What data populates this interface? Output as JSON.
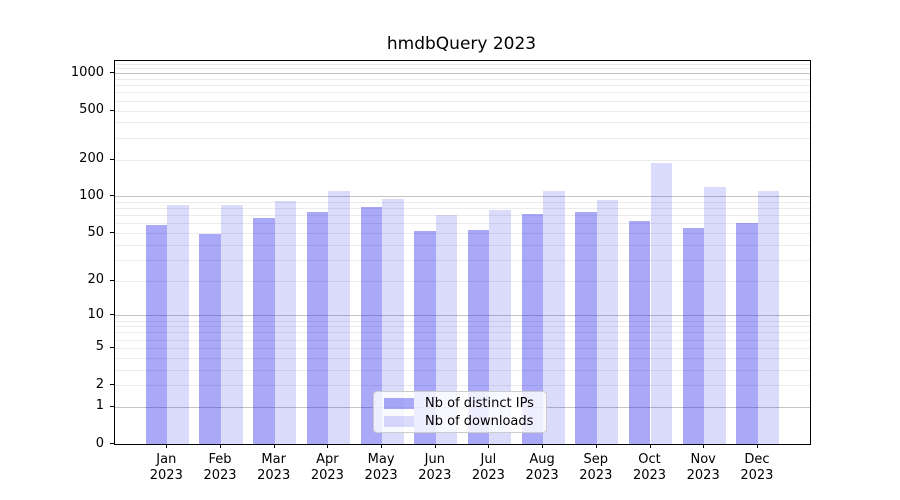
{
  "chart_data": {
    "type": "bar",
    "title": "hmdbQuery 2023",
    "categories": [
      "Jan",
      "Feb",
      "Mar",
      "Apr",
      "May",
      "Jun",
      "Jul",
      "Aug",
      "Sep",
      "Oct",
      "Nov",
      "Dec"
    ],
    "xtick_year": "2023",
    "series": [
      {
        "name": "Nb of distinct IPs",
        "color": "rgba(30,30,235,0.38)",
        "values": [
          58,
          49,
          66,
          74,
          82,
          52,
          53,
          72,
          74,
          63,
          55,
          60
        ]
      },
      {
        "name": "Nb of downloads",
        "color": "rgba(30,30,235,0.16)",
        "values": [
          85,
          85,
          92,
          110,
          96,
          71,
          77,
          111,
          94,
          188,
          120,
          111
        ]
      }
    ],
    "yscale": "log(1+x)",
    "yticks": [
      0,
      1,
      2,
      5,
      10,
      20,
      50,
      100,
      200,
      500,
      1000
    ],
    "ylim": [
      0,
      1275
    ],
    "grid": "both",
    "legend_position": "lower center",
    "colors": {
      "decade_grid": "#c3c3c3",
      "minor_grid": "#ebebeb",
      "spine": "#000000",
      "text": "#000000",
      "background": "#ffffff"
    }
  }
}
